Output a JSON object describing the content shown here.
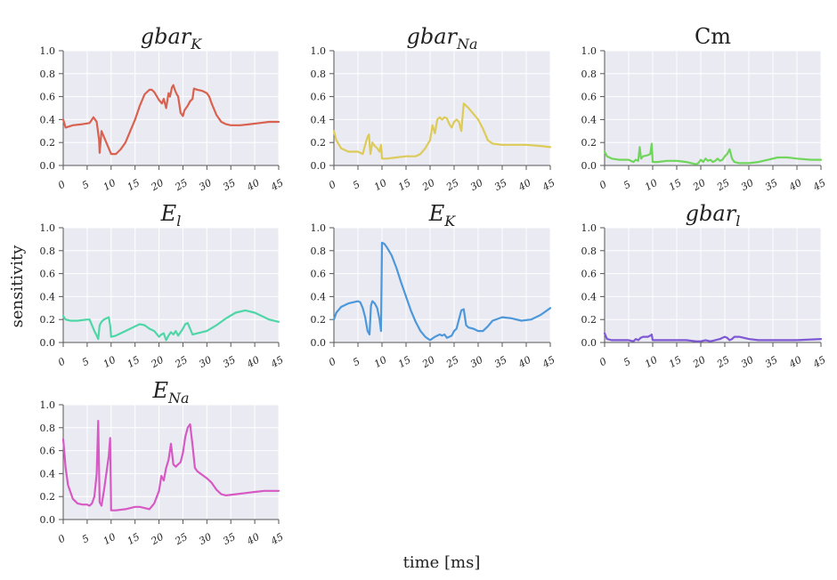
{
  "figure": {
    "xlabel": "time [ms]",
    "ylabel": "sensitivity"
  },
  "chart_data": [
    {
      "type": "line",
      "title": "gbar_K",
      "title_main": "gbar",
      "title_sub": "K",
      "color": "#d9614f",
      "xlim": [
        0,
        45
      ],
      "ylim": [
        0,
        1.0
      ],
      "xticks": [
        "0",
        "5",
        "10",
        "15",
        "20",
        "25",
        "30",
        "35",
        "40",
        "45"
      ],
      "yticks": [
        "0.0",
        "0.2",
        "0.4",
        "0.6",
        "0.8",
        "1.0"
      ],
      "x": [
        0,
        0.5,
        2,
        4,
        5.5,
        6,
        6.3,
        7,
        7.5,
        7.6,
        8,
        8.5,
        9.5,
        10,
        11,
        12,
        13,
        14,
        15,
        16,
        17,
        18,
        18.5,
        19,
        20,
        20.6,
        21,
        21.5,
        22,
        22.3,
        22.7,
        23,
        23.3,
        23.7,
        24,
        24.5,
        25,
        25.3,
        26,
        26.5,
        27,
        27.3,
        28,
        29,
        29.5,
        30,
        30.5,
        31,
        32,
        33,
        34,
        35,
        37,
        39,
        41,
        43,
        45
      ],
      "y": [
        0.4,
        0.33,
        0.35,
        0.36,
        0.37,
        0.4,
        0.42,
        0.38,
        0.22,
        0.11,
        0.3,
        0.25,
        0.15,
        0.1,
        0.1,
        0.14,
        0.2,
        0.3,
        0.4,
        0.52,
        0.62,
        0.66,
        0.66,
        0.64,
        0.57,
        0.54,
        0.58,
        0.5,
        0.63,
        0.6,
        0.68,
        0.7,
        0.66,
        0.62,
        0.6,
        0.46,
        0.43,
        0.48,
        0.52,
        0.56,
        0.58,
        0.67,
        0.66,
        0.65,
        0.64,
        0.63,
        0.6,
        0.54,
        0.44,
        0.38,
        0.36,
        0.35,
        0.35,
        0.36,
        0.37,
        0.38,
        0.38
      ]
    },
    {
      "type": "line",
      "title": "gbar_Na",
      "title_main": "gbar",
      "title_sub": "Na",
      "color": "#ddcb59",
      "xlim": [
        0,
        45
      ],
      "ylim": [
        0,
        1.0
      ],
      "xticks": [
        "0",
        "5",
        "10",
        "15",
        "20",
        "25",
        "30",
        "35",
        "40",
        "45"
      ],
      "yticks": [
        "0.0",
        "0.2",
        "0.4",
        "0.6",
        "0.8",
        "1.0"
      ],
      "x": [
        0,
        0.5,
        1.5,
        3,
        5,
        6,
        6.5,
        7,
        7.3,
        7.6,
        8,
        8.5,
        9,
        9.5,
        9.8,
        10,
        11,
        13,
        15,
        16,
        17,
        18,
        19,
        20,
        20.5,
        21,
        21.5,
        22,
        22.5,
        23,
        23.5,
        24,
        24.5,
        25,
        25.5,
        26,
        26.5,
        27,
        27.5,
        28,
        29,
        30,
        31,
        32,
        33,
        35,
        37,
        40,
        43,
        45
      ],
      "y": [
        0.3,
        0.22,
        0.15,
        0.12,
        0.12,
        0.1,
        0.18,
        0.25,
        0.27,
        0.1,
        0.2,
        0.17,
        0.15,
        0.12,
        0.18,
        0.06,
        0.06,
        0.07,
        0.08,
        0.08,
        0.08,
        0.1,
        0.15,
        0.22,
        0.35,
        0.28,
        0.4,
        0.42,
        0.4,
        0.42,
        0.41,
        0.36,
        0.33,
        0.38,
        0.4,
        0.38,
        0.3,
        0.54,
        0.52,
        0.5,
        0.45,
        0.4,
        0.32,
        0.22,
        0.19,
        0.18,
        0.18,
        0.18,
        0.17,
        0.16
      ]
    },
    {
      "type": "line",
      "title": "Cm",
      "title_main": "Cm",
      "title_sub": "",
      "color": "#6fd65b",
      "xlim": [
        0,
        45
      ],
      "ylim": [
        0,
        1.0
      ],
      "xticks": [
        "0",
        "5",
        "10",
        "15",
        "20",
        "25",
        "30",
        "35",
        "40",
        "45"
      ],
      "yticks": [
        "0.0",
        "0.2",
        "0.4",
        "0.6",
        "0.8",
        "1.0"
      ],
      "x": [
        0,
        0.5,
        1.5,
        3,
        5,
        6,
        6.5,
        7,
        7.3,
        7.6,
        8,
        9,
        9.5,
        9.8,
        10,
        11,
        13,
        15,
        17,
        19,
        19.5,
        20,
        20.5,
        21,
        21.5,
        22,
        22.5,
        23,
        23.5,
        24,
        24.5,
        25,
        25.5,
        26,
        26.5,
        27,
        28,
        30,
        32,
        34,
        36,
        38,
        40,
        43,
        45
      ],
      "y": [
        0.12,
        0.08,
        0.06,
        0.05,
        0.05,
        0.03,
        0.05,
        0.04,
        0.16,
        0.06,
        0.08,
        0.09,
        0.1,
        0.19,
        0.03,
        0.03,
        0.04,
        0.04,
        0.03,
        0.01,
        0.02,
        0.05,
        0.03,
        0.06,
        0.04,
        0.05,
        0.03,
        0.04,
        0.06,
        0.04,
        0.05,
        0.08,
        0.1,
        0.14,
        0.06,
        0.03,
        0.02,
        0.02,
        0.03,
        0.05,
        0.07,
        0.07,
        0.06,
        0.05,
        0.05
      ]
    },
    {
      "type": "line",
      "title": "E_l",
      "title_main": "E",
      "title_sub": "l",
      "color": "#4fd6a6",
      "xlim": [
        0,
        45
      ],
      "ylim": [
        0,
        1.0
      ],
      "xticks": [
        "0",
        "5",
        "10",
        "15",
        "20",
        "25",
        "30",
        "35",
        "40",
        "45"
      ],
      "yticks": [
        "0.0",
        "0.2",
        "0.4",
        "0.6",
        "0.8",
        "1.0"
      ],
      "x": [
        0,
        0.5,
        1.5,
        3,
        5,
        5.5,
        6,
        6.5,
        7,
        7.3,
        7.6,
        8,
        8.5,
        9,
        9.5,
        9.8,
        10,
        11,
        13,
        15,
        16,
        17,
        18,
        19,
        20,
        20.5,
        21,
        21.5,
        22,
        22.5,
        23,
        23.5,
        24,
        24.5,
        25,
        25.5,
        26,
        26.5,
        27,
        28,
        30,
        32,
        34,
        36,
        38,
        40,
        42,
        43,
        45
      ],
      "y": [
        0.23,
        0.2,
        0.19,
        0.19,
        0.2,
        0.2,
        0.15,
        0.1,
        0.06,
        0.03,
        0.15,
        0.18,
        0.2,
        0.21,
        0.22,
        0.15,
        0.05,
        0.06,
        0.1,
        0.14,
        0.16,
        0.15,
        0.12,
        0.1,
        0.05,
        0.07,
        0.08,
        0.02,
        0.06,
        0.09,
        0.07,
        0.1,
        0.06,
        0.09,
        0.12,
        0.16,
        0.17,
        0.12,
        0.07,
        0.08,
        0.1,
        0.15,
        0.21,
        0.26,
        0.28,
        0.26,
        0.22,
        0.2,
        0.18
      ]
    },
    {
      "type": "line",
      "title": "E_K",
      "title_main": "E",
      "title_sub": "K",
      "color": "#4d98da",
      "xlim": [
        0,
        45
      ],
      "ylim": [
        0,
        1.0
      ],
      "xticks": [
        "0",
        "5",
        "10",
        "15",
        "20",
        "25",
        "30",
        "35",
        "40",
        "45"
      ],
      "yticks": [
        "0.0",
        "0.2",
        "0.4",
        "0.6",
        "0.8",
        "1.0"
      ],
      "x": [
        0,
        0.5,
        1.5,
        3,
        5,
        5.5,
        6,
        6.5,
        7,
        7.4,
        7.7,
        8,
        8.5,
        9,
        9.5,
        9.8,
        10,
        10.5,
        11,
        12,
        13,
        14,
        15,
        16,
        17,
        18,
        19,
        20,
        21,
        22,
        22.5,
        23,
        23.5,
        24,
        24.5,
        25,
        25.5,
        26,
        26.5,
        27,
        27.5,
        28,
        29,
        30,
        31,
        32,
        33,
        35,
        37,
        39,
        41,
        43,
        45
      ],
      "y": [
        0.2,
        0.26,
        0.31,
        0.34,
        0.36,
        0.35,
        0.3,
        0.22,
        0.1,
        0.07,
        0.32,
        0.36,
        0.34,
        0.3,
        0.2,
        0.1,
        0.87,
        0.86,
        0.83,
        0.76,
        0.65,
        0.52,
        0.4,
        0.28,
        0.18,
        0.1,
        0.05,
        0.02,
        0.05,
        0.07,
        0.06,
        0.07,
        0.04,
        0.05,
        0.06,
        0.1,
        0.12,
        0.2,
        0.28,
        0.29,
        0.15,
        0.13,
        0.12,
        0.1,
        0.1,
        0.14,
        0.19,
        0.22,
        0.21,
        0.19,
        0.2,
        0.24,
        0.3
      ]
    },
    {
      "type": "line",
      "title": "gbar_l",
      "title_main": "gbar",
      "title_sub": "l",
      "color": "#7f58d4",
      "xlim": [
        0,
        45
      ],
      "ylim": [
        0,
        1.0
      ],
      "xticks": [
        "0",
        "5",
        "10",
        "15",
        "20",
        "25",
        "30",
        "35",
        "40",
        "45"
      ],
      "yticks": [
        "0.0",
        "0.2",
        "0.4",
        "0.6",
        "0.8",
        "1.0"
      ],
      "x": [
        0,
        0.5,
        1.5,
        3,
        5,
        6,
        6.5,
        7,
        7.5,
        8,
        9,
        9.5,
        9.8,
        10,
        11,
        13,
        15,
        17,
        19,
        20,
        21,
        22,
        23,
        24,
        24.5,
        25,
        25.5,
        26,
        26.5,
        27,
        28,
        30,
        32,
        34,
        36,
        40,
        45
      ],
      "y": [
        0.08,
        0.03,
        0.02,
        0.02,
        0.02,
        0.01,
        0.03,
        0.02,
        0.04,
        0.05,
        0.05,
        0.06,
        0.07,
        0.02,
        0.02,
        0.02,
        0.02,
        0.02,
        0.01,
        0.01,
        0.02,
        0.01,
        0.02,
        0.03,
        0.04,
        0.05,
        0.04,
        0.02,
        0.03,
        0.05,
        0.05,
        0.03,
        0.02,
        0.02,
        0.02,
        0.02,
        0.03
      ]
    },
    {
      "type": "line",
      "title": "E_Na",
      "title_main": "E",
      "title_sub": "Na",
      "color": "#d659c4",
      "xlim": [
        0,
        45
      ],
      "ylim": [
        0,
        1.0
      ],
      "xticks": [
        "0",
        "5",
        "10",
        "15",
        "20",
        "25",
        "30",
        "35",
        "40",
        "45"
      ],
      "yticks": [
        "0.0",
        "0.2",
        "0.4",
        "0.6",
        "0.8",
        "1.0"
      ],
      "x": [
        0,
        0.5,
        1,
        2,
        3,
        4,
        5,
        5.5,
        6,
        6.5,
        7,
        7.3,
        7.6,
        8,
        8.5,
        9,
        9.5,
        9.8,
        10,
        11,
        13,
        15,
        16,
        17,
        18,
        19,
        20,
        20.5,
        21,
        21.5,
        22,
        22.5,
        23,
        23.5,
        24,
        24.5,
        25,
        25.5,
        26,
        26.5,
        27,
        27.5,
        28,
        30,
        31,
        32,
        33,
        34,
        36,
        38,
        40,
        42,
        45
      ],
      "y": [
        0.7,
        0.45,
        0.3,
        0.18,
        0.14,
        0.13,
        0.13,
        0.12,
        0.14,
        0.2,
        0.4,
        0.86,
        0.15,
        0.12,
        0.25,
        0.4,
        0.55,
        0.71,
        0.08,
        0.08,
        0.09,
        0.11,
        0.11,
        0.1,
        0.09,
        0.14,
        0.25,
        0.38,
        0.34,
        0.45,
        0.52,
        0.66,
        0.48,
        0.46,
        0.48,
        0.5,
        0.58,
        0.72,
        0.8,
        0.83,
        0.65,
        0.45,
        0.42,
        0.36,
        0.32,
        0.26,
        0.22,
        0.21,
        0.22,
        0.23,
        0.24,
        0.25,
        0.25
      ]
    }
  ]
}
